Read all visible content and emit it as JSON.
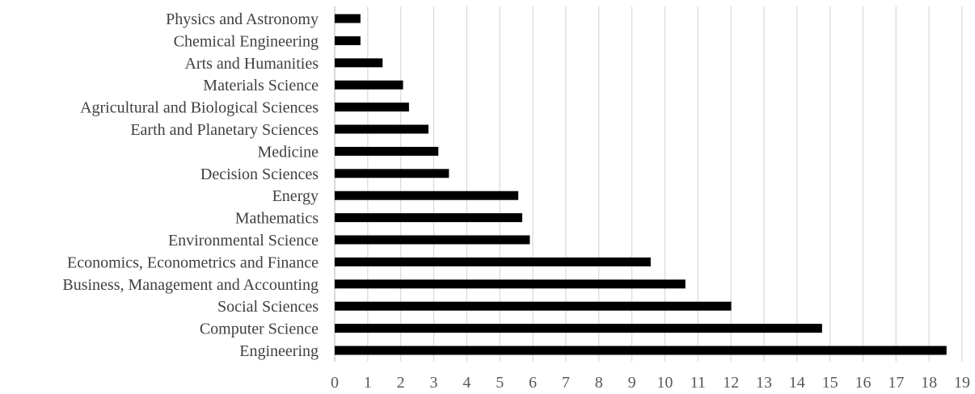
{
  "chart_data": {
    "type": "bar",
    "orientation": "horizontal",
    "categories": [
      "Physics and Astronomy",
      "Chemical Engineering",
      "Arts and Humanities",
      "Materials Science",
      "Agricultural and Biological Sciences",
      "Earth and Planetary Sciences",
      "Medicine",
      "Decision Sciences",
      "Energy",
      "Mathematics",
      "Environmental Science",
      "Economics, Econometrics and Finance",
      "Business, Management and Accounting",
      "Social Sciences",
      "Computer Science",
      "Engineering"
    ],
    "values": [
      0.78,
      0.78,
      1.45,
      2.07,
      2.25,
      2.84,
      3.14,
      3.46,
      5.56,
      5.68,
      5.91,
      9.57,
      10.62,
      12.01,
      14.76,
      18.53
    ],
    "title": "",
    "xlabel": "",
    "ylabel": "",
    "xlim": [
      0,
      19
    ],
    "xticks": [
      "0",
      "1",
      "2",
      "3",
      "4",
      "5",
      "6",
      "7",
      "8",
      "9",
      "10",
      "11",
      "12",
      "13",
      "14",
      "15",
      "16",
      "17",
      "18",
      "19"
    ],
    "grid": "vertical",
    "legend": "none",
    "bar_color": "#000000",
    "grid_color": "#d9d9d9"
  }
}
